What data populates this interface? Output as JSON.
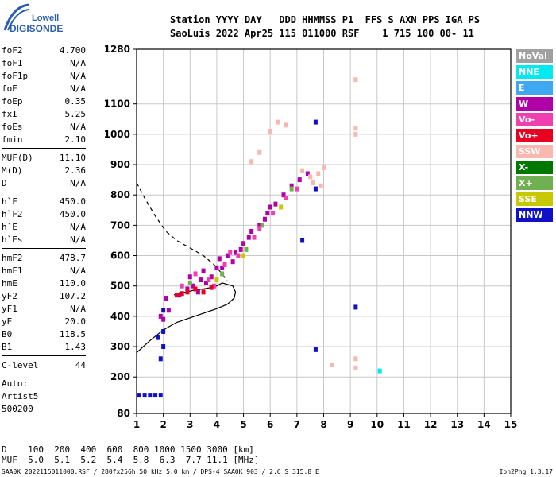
{
  "logo": {
    "line1": "Lowell",
    "line2": "DIGISONDE"
  },
  "header": {
    "row1": "Station YYYY DAY   DDD HHMMSS P1  FFS S AXN PPS IGA PS",
    "row2": "SaoLuis 2022 Apr25 115 011000 RSF    1 715 100 00- 11"
  },
  "params": [
    {
      "label": "foF2",
      "value": "4.700"
    },
    {
      "label": "foF1",
      "value": "N/A"
    },
    {
      "label": "foF1p",
      "value": "N/A"
    },
    {
      "label": "foE",
      "value": "N/A"
    },
    {
      "label": "foEp",
      "value": "0.35"
    },
    {
      "label": "fxI",
      "value": "5.25"
    },
    {
      "label": "foEs",
      "value": "N/A"
    },
    {
      "label": "fmin",
      "value": "2.10"
    },
    {
      "sep": true
    },
    {
      "label": "MUF(D)",
      "value": "11.10"
    },
    {
      "label": "M(D)",
      "value": "2.36"
    },
    {
      "label": "D",
      "value": "N/A"
    },
    {
      "sep": true
    },
    {
      "label": "h`F",
      "value": "450.0"
    },
    {
      "label": "h`F2",
      "value": "450.0"
    },
    {
      "label": "h`E",
      "value": "N/A"
    },
    {
      "label": "h`Es",
      "value": "N/A"
    },
    {
      "sep": true
    },
    {
      "label": "hmF2",
      "value": "478.7"
    },
    {
      "label": "hmF1",
      "value": "N/A"
    },
    {
      "label": "hmE",
      "value": "110.0"
    },
    {
      "label": "yF2",
      "value": "107.2"
    },
    {
      "label": "yF1",
      "value": "N/A"
    },
    {
      "label": "yE",
      "value": "20.0"
    },
    {
      "label": "B0",
      "value": "118.5"
    },
    {
      "label": "B1",
      "value": "1.43"
    },
    {
      "sep": true
    },
    {
      "label": "C-level",
      "value": "44"
    },
    {
      "sep": true
    },
    {
      "line": "Auto:"
    },
    {
      "line": "Artist5"
    },
    {
      "line": "500200"
    }
  ],
  "legend": [
    {
      "label": "NoVal",
      "color": "#a0a0a0"
    },
    {
      "label": "NNE",
      "color": "#00e8f0"
    },
    {
      "label": "E",
      "color": "#40a8f0"
    },
    {
      "label": "W",
      "color": "#b000a8"
    },
    {
      "label": "Vo-",
      "color": "#f040b0"
    },
    {
      "label": "Vo+",
      "color": "#e80020"
    },
    {
      "label": "SSW",
      "color": "#f8b8b0"
    },
    {
      "label": "X-",
      "color": "#007800"
    },
    {
      "label": "X+",
      "color": "#70b050"
    },
    {
      "label": "SSE",
      "color": "#c8c800"
    },
    {
      "label": "NNW",
      "color": "#1010c8"
    }
  ],
  "bottom": {
    "row1": "D    100  200  400  600  800 1000 1500 3000 [km]",
    "row2": "MUF  5.0  5.1  5.2  5.4  5.8  6.3  7.7 11.1 [MHz]"
  },
  "footer": {
    "left": "SAA0K_2022115011000.RSF / 280fx256h 50 kHz 5.0 km / DPS-4 SAA0K 903 / 2.6 S 315.8 E",
    "right": "Ion2Png 1.3.17"
  },
  "chart_data": {
    "type": "scatter",
    "xlim": [
      1,
      15
    ],
    "ylim": [
      80,
      1280
    ],
    "x_ticks": [
      1,
      2,
      3,
      4,
      5,
      6,
      7,
      8,
      9,
      10,
      11,
      12,
      13,
      14,
      15
    ],
    "y_ticks": [
      80,
      200,
      300,
      400,
      500,
      600,
      700,
      800,
      900,
      1000,
      1100,
      1280
    ],
    "grid": true,
    "series": [
      {
        "name": "W",
        "points": [
          [
            2.6,
            470
          ],
          [
            2.9,
            490
          ],
          [
            3.1,
            500
          ],
          [
            3.4,
            520
          ],
          [
            3.6,
            510
          ],
          [
            3.8,
            530
          ],
          [
            4.0,
            560
          ],
          [
            4.2,
            560
          ],
          [
            4.4,
            600
          ],
          [
            4.7,
            610
          ],
          [
            5.0,
            640
          ],
          [
            5.3,
            680
          ],
          [
            5.6,
            700
          ],
          [
            5.9,
            740
          ],
          [
            6.2,
            770
          ],
          [
            6.5,
            800
          ],
          [
            6.8,
            830
          ],
          [
            7.1,
            850
          ],
          [
            7.4,
            870
          ],
          [
            3.0,
            530
          ],
          [
            3.5,
            550
          ],
          [
            4.1,
            590
          ],
          [
            4.6,
            580
          ],
          [
            5.2,
            660
          ],
          [
            5.8,
            720
          ],
          [
            2.2,
            420
          ],
          [
            2.0,
            390
          ],
          [
            1.9,
            400
          ],
          [
            2.1,
            460
          ],
          [
            3.3,
            480
          ],
          [
            4.9,
            620
          ],
          [
            6.0,
            760
          ]
        ]
      },
      {
        "name": "Vo-",
        "points": [
          [
            2.7,
            500
          ],
          [
            3.2,
            540
          ],
          [
            3.7,
            520
          ],
          [
            4.3,
            570
          ],
          [
            4.8,
            600
          ],
          [
            5.4,
            660
          ],
          [
            6.1,
            740
          ],
          [
            6.6,
            790
          ],
          [
            7.0,
            820
          ],
          [
            3.9,
            500
          ],
          [
            4.5,
            610
          ],
          [
            5.6,
            690
          ]
        ]
      },
      {
        "name": "Vo+",
        "points": [
          [
            2.5,
            470
          ],
          [
            2.7,
            475
          ],
          [
            2.9,
            480
          ],
          [
            3.2,
            490
          ],
          [
            3.5,
            480
          ],
          [
            3.8,
            495
          ]
        ]
      },
      {
        "name": "SSW",
        "points": [
          [
            7.2,
            880
          ],
          [
            7.5,
            860
          ],
          [
            7.8,
            870
          ],
          [
            8.0,
            890
          ],
          [
            6.0,
            1010
          ],
          [
            6.3,
            1040
          ],
          [
            6.6,
            1030
          ],
          [
            5.3,
            910
          ],
          [
            5.6,
            940
          ],
          [
            7.9,
            830
          ],
          [
            7.6,
            840
          ],
          [
            9.2,
            1000
          ],
          [
            9.2,
            1020
          ],
          [
            9.2,
            1180
          ],
          [
            8.3,
            240
          ],
          [
            9.2,
            260
          ],
          [
            9.2,
            230
          ]
        ]
      },
      {
        "name": "NNW",
        "points": [
          [
            1.1,
            140
          ],
          [
            1.3,
            140
          ],
          [
            1.5,
            140
          ],
          [
            1.7,
            140
          ],
          [
            1.9,
            140
          ],
          [
            1.9,
            260
          ],
          [
            2.0,
            300
          ],
          [
            2.0,
            350
          ],
          [
            2.0,
            420
          ],
          [
            1.8,
            330
          ],
          [
            7.7,
            1040
          ],
          [
            7.7,
            820
          ],
          [
            7.2,
            650
          ],
          [
            7.7,
            290
          ],
          [
            9.2,
            430
          ]
        ]
      },
      {
        "name": "X+",
        "points": [
          [
            3.0,
            510
          ],
          [
            4.2,
            540
          ],
          [
            5.1,
            620
          ],
          [
            5.7,
            700
          ],
          [
            6.8,
            820
          ]
        ]
      },
      {
        "name": "SSE",
        "points": [
          [
            4.0,
            520
          ],
          [
            5.0,
            600
          ],
          [
            6.4,
            760
          ]
        ]
      },
      {
        "name": "NNE",
        "points": [
          [
            10.1,
            220
          ]
        ]
      }
    ],
    "lines": [
      {
        "style": "solid",
        "points": [
          [
            1,
            280
          ],
          [
            1.5,
            320
          ],
          [
            2,
            355
          ],
          [
            2.5,
            380
          ],
          [
            3,
            395
          ],
          [
            3.5,
            410
          ],
          [
            4,
            425
          ],
          [
            4.4,
            440
          ],
          [
            4.65,
            460
          ],
          [
            4.7,
            480
          ],
          [
            4.6,
            500
          ],
          [
            4.4,
            505
          ],
          [
            4.2,
            510
          ],
          [
            4.0,
            500
          ],
          [
            3.8,
            495
          ],
          [
            3.5,
            490
          ],
          [
            3.2,
            488
          ],
          [
            2.9,
            480
          ],
          [
            2.6,
            478
          ],
          [
            2.4,
            470
          ]
        ]
      },
      {
        "style": "dashed",
        "points": [
          [
            1,
            840
          ],
          [
            1.3,
            790
          ],
          [
            1.7,
            730
          ],
          [
            2.1,
            680
          ],
          [
            2.5,
            650
          ],
          [
            3.0,
            625
          ],
          [
            3.5,
            600
          ],
          [
            3.9,
            570
          ],
          [
            4.2,
            540
          ],
          [
            4.4,
            515
          ]
        ]
      }
    ]
  }
}
